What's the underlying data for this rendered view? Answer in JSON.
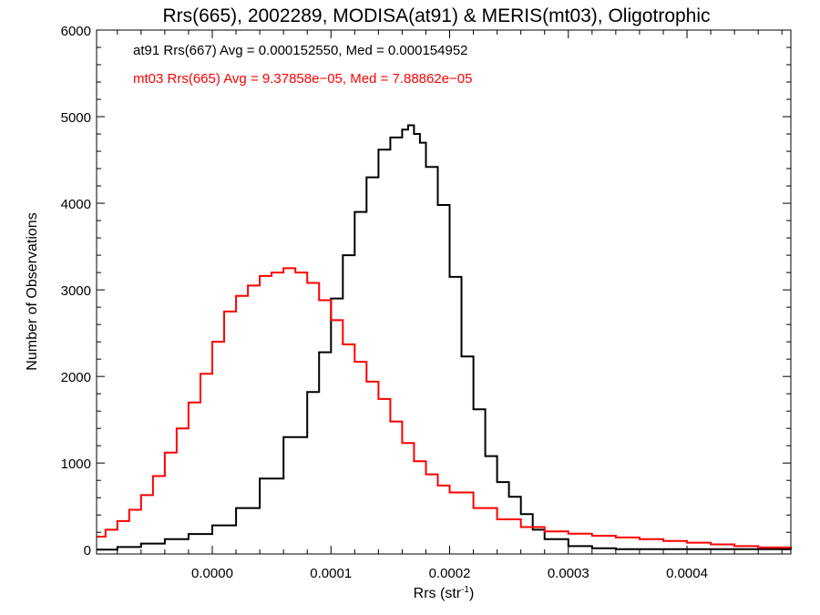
{
  "chart_data": {
    "type": "line",
    "title": "Rrs(665), 2002289, MODISA(at91) & MERIS(mt03), Oligotrophic",
    "xlabel_base": "Rrs (str",
    "xlabel_sup": "-1",
    "xlabel_close": ")",
    "ylabel": "Number of Observations",
    "xlim": [
      -9.75e-05,
      0.0004875
    ],
    "ylim": [
      -50,
      6000
    ],
    "x_ticks": [
      0.0,
      0.0001,
      0.0002,
      0.0003,
      0.0004
    ],
    "x_tick_labels": [
      "0.0000",
      "0.0001",
      "0.0002",
      "0.0003",
      "0.0004"
    ],
    "y_ticks": [
      0,
      1000,
      2000,
      3000,
      4000,
      5000,
      6000
    ],
    "y_tick_labels": [
      "0",
      "1000",
      "2000",
      "3000",
      "4000",
      "5000",
      "6000"
    ],
    "annotations": [
      {
        "text": "at91 Rrs(667) Avg = 0.000152550, Med = 0.000154952",
        "color": "#000000"
      },
      {
        "text": "mt03 Rrs(665) Avg = 9.37858e−05, Med = 7.88862e−05",
        "color": "#ff0000"
      }
    ],
    "series": [
      {
        "color": "#000000",
        "step": true,
        "x": [
          -9.75e-05,
          -8e-05,
          -6e-05,
          -4e-05,
          -2e-05,
          0.0,
          2e-05,
          4e-05,
          6e-05,
          8e-05,
          9e-05,
          0.0001,
          0.00011,
          0.00012,
          0.00013,
          0.00014,
          0.00015,
          0.00016,
          0.000165,
          0.00017,
          0.000175,
          0.00018,
          0.00019,
          0.0002,
          0.00021,
          0.00022,
          0.00023,
          0.00024,
          0.00025,
          0.00026,
          0.00027,
          0.00028,
          0.0003,
          0.00032,
          0.00034,
          0.0004875
        ],
        "y": [
          0,
          30,
          70,
          120,
          180,
          280,
          480,
          820,
          1300,
          1820,
          2280,
          2900,
          3400,
          3900,
          4300,
          4620,
          4760,
          4850,
          4900,
          4800,
          4700,
          4420,
          3980,
          3150,
          2230,
          1620,
          1080,
          780,
          610,
          410,
          230,
          120,
          40,
          15,
          5,
          0
        ]
      },
      {
        "color": "#ff0000",
        "step": true,
        "x": [
          -9.75e-05,
          -9e-05,
          -8e-05,
          -7e-05,
          -6e-05,
          -5e-05,
          -4e-05,
          -3e-05,
          -2e-05,
          -1e-05,
          0.0,
          1e-05,
          2e-05,
          3e-05,
          4e-05,
          5e-05,
          6e-05,
          7e-05,
          8e-05,
          9e-05,
          0.0001,
          0.00011,
          0.00012,
          0.00013,
          0.00014,
          0.00015,
          0.00016,
          0.00017,
          0.00018,
          0.00019,
          0.0002,
          0.00022,
          0.00024,
          0.00026,
          0.00028,
          0.0003,
          0.00032,
          0.00034,
          0.00036,
          0.00038,
          0.0004,
          0.00042,
          0.00044,
          0.00046,
          0.0004875
        ],
        "y": [
          150,
          230,
          330,
          460,
          630,
          850,
          1120,
          1400,
          1700,
          2030,
          2400,
          2750,
          2930,
          3050,
          3160,
          3200,
          3250,
          3200,
          3080,
          2880,
          2650,
          2370,
          2170,
          1940,
          1740,
          1480,
          1230,
          1020,
          870,
          740,
          660,
          480,
          350,
          260,
          210,
          185,
          160,
          140,
          120,
          100,
          80,
          60,
          40,
          25,
          10
        ]
      }
    ]
  }
}
